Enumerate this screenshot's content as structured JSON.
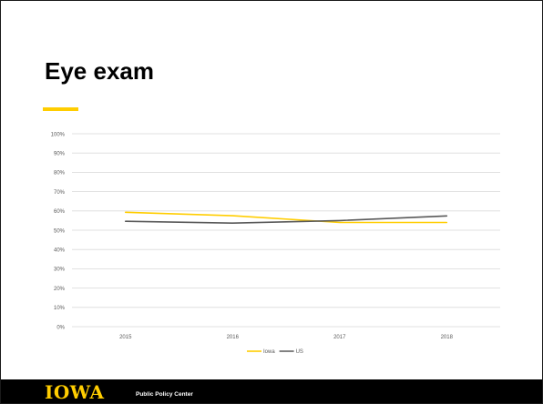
{
  "slide": {
    "title": "Eye exam"
  },
  "colors": {
    "accent": "#FFCD00",
    "us_line": "#595959",
    "grid": "#d9d9d9",
    "axis_text": "#595959"
  },
  "footer": {
    "logo": "IOWA",
    "center": "Public Policy Center"
  },
  "chart_data": {
    "type": "line",
    "title": "",
    "xlabel": "",
    "ylabel": "",
    "categories": [
      "2015",
      "2016",
      "2017",
      "2018"
    ],
    "ylim": [
      0,
      100
    ],
    "yticks": [
      "0%",
      "10%",
      "20%",
      "30%",
      "40%",
      "50%",
      "60%",
      "70%",
      "80%",
      "90%",
      "100%"
    ],
    "grid": true,
    "legend": "bottom",
    "series": [
      {
        "name": "Iowa",
        "values": [
          59.3,
          57.5,
          54.0,
          54.0
        ],
        "color": "#FFCD00"
      },
      {
        "name": "US",
        "values": [
          54.6,
          53.7,
          55.0,
          57.4
        ],
        "color": "#595959"
      }
    ]
  }
}
